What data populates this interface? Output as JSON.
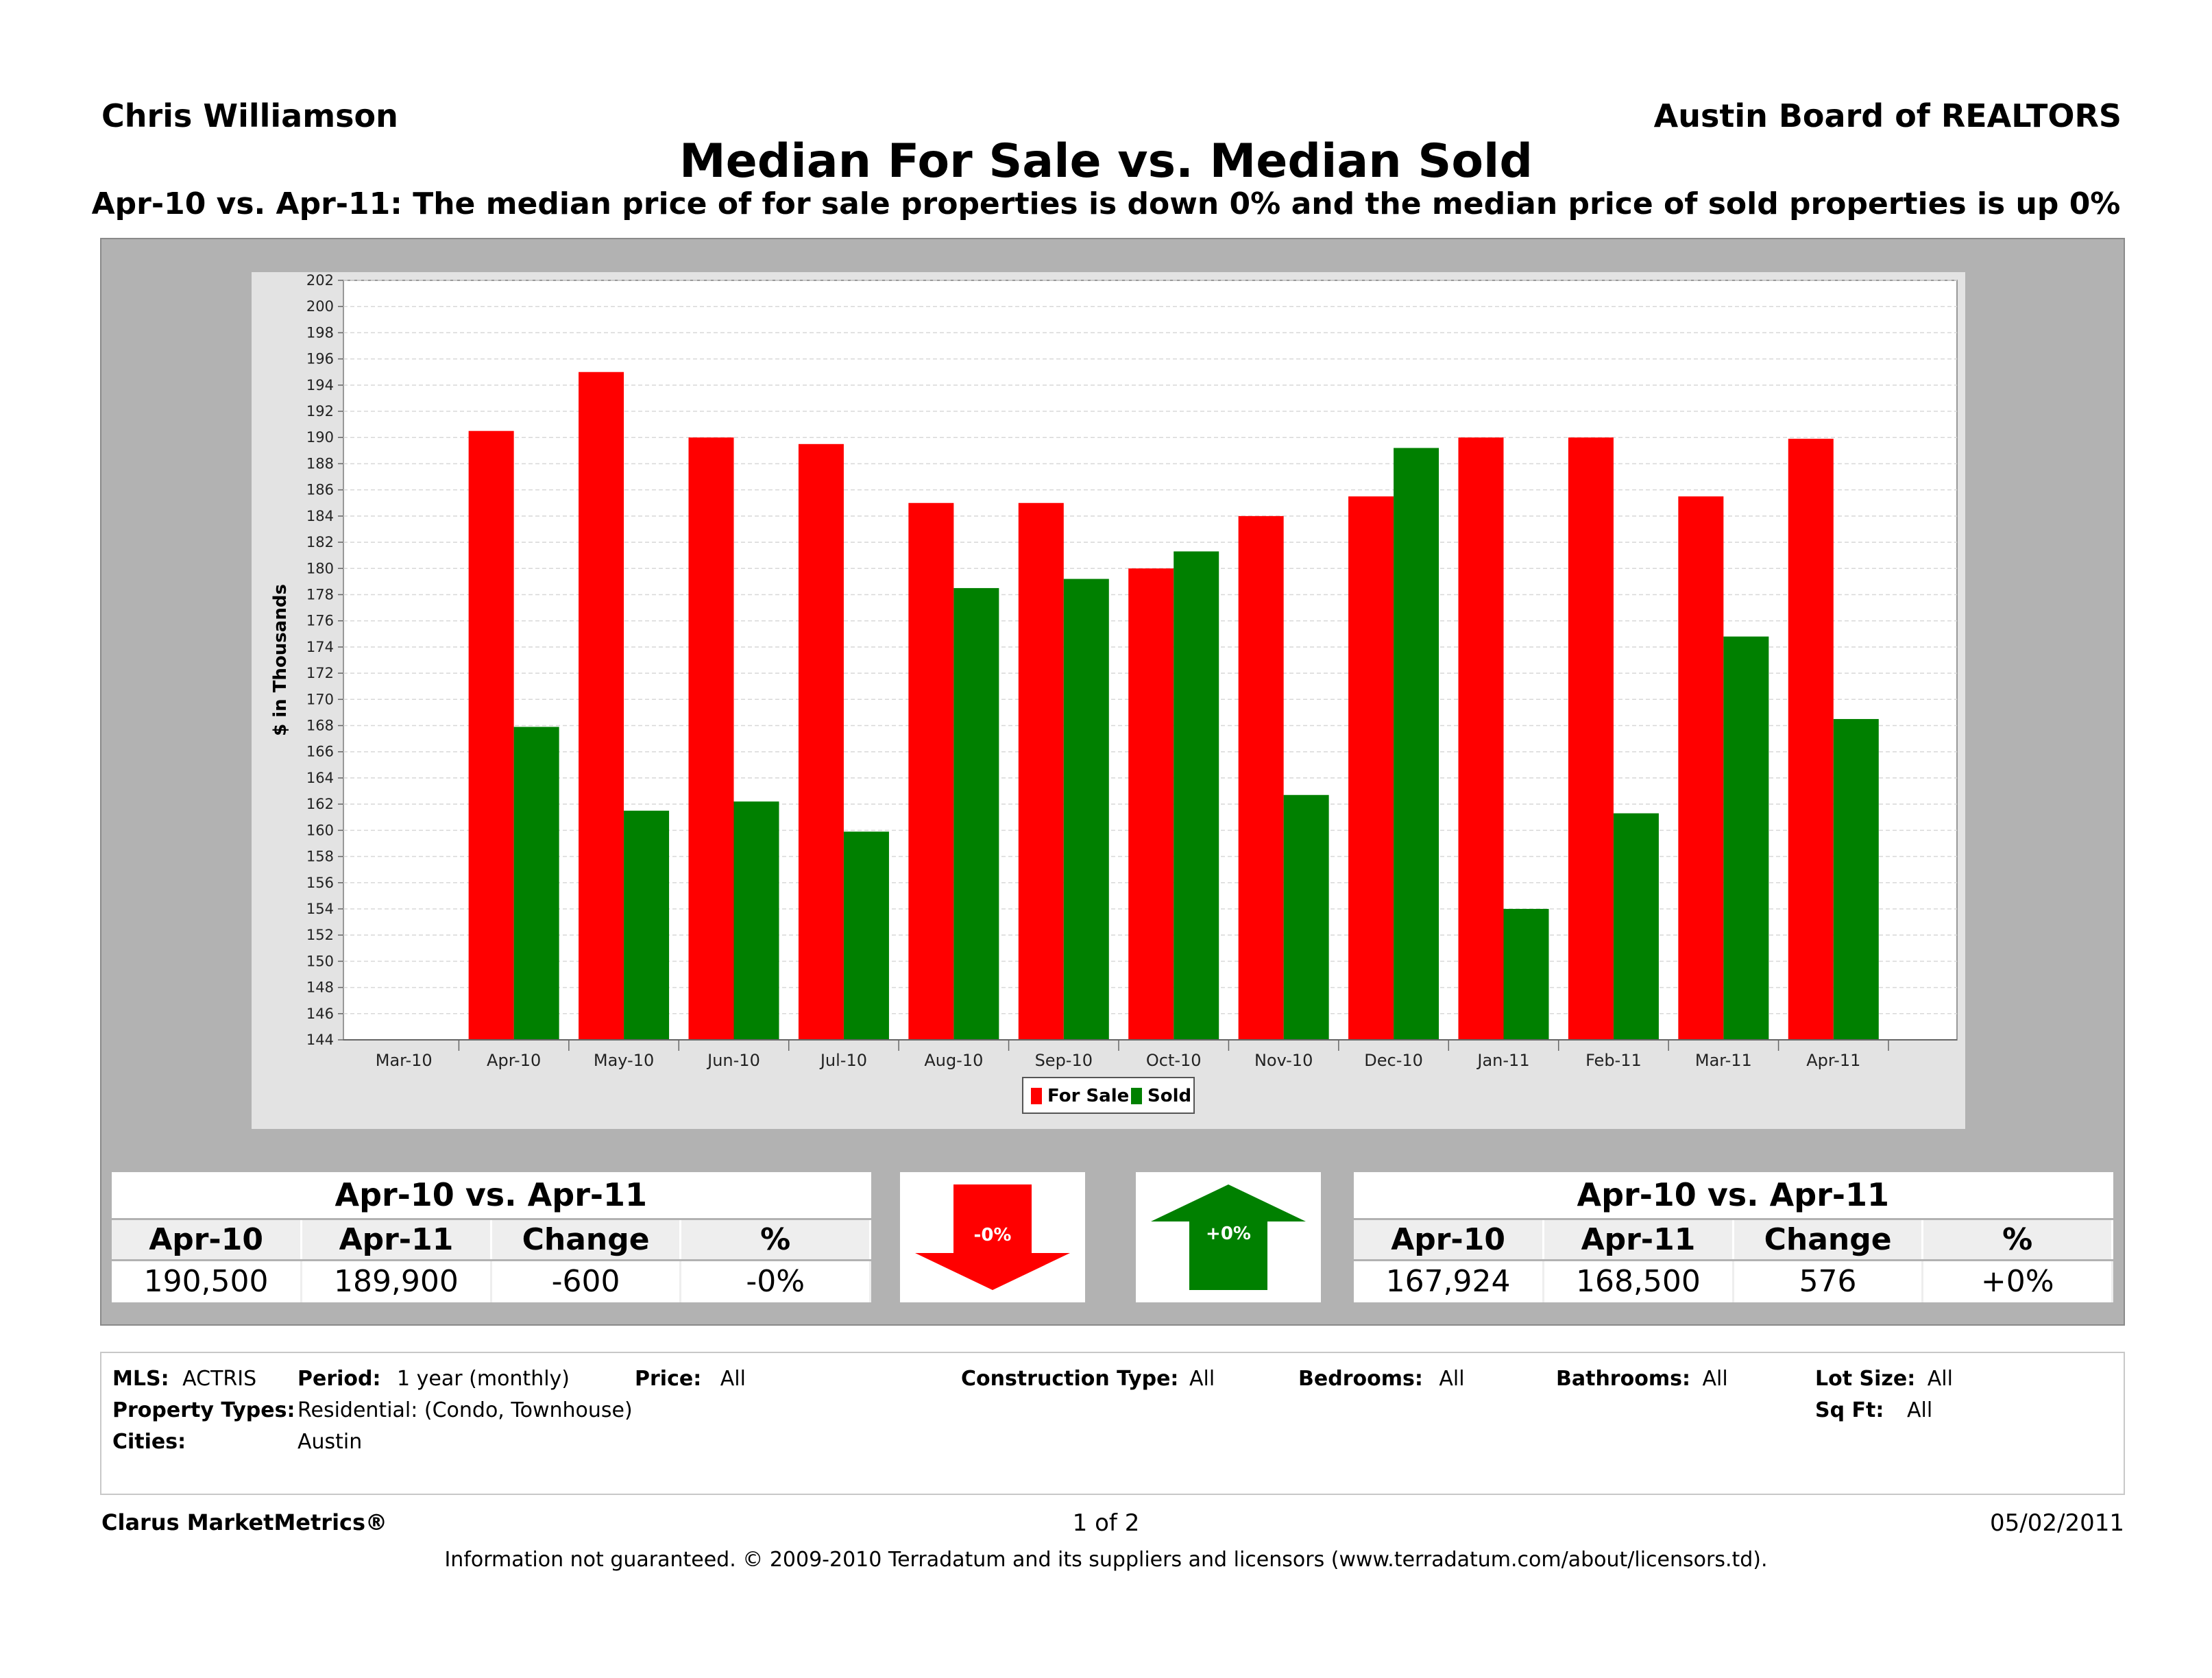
{
  "header": {
    "agent": "Chris Williamson",
    "board": "Austin Board of REALTORS",
    "title": "Median For Sale vs. Median Sold",
    "subtitle": "Apr-10 vs. Apr-11:  The median price of for sale properties is down 0% and the median price of sold properties is up 0%"
  },
  "chart_data": {
    "type": "bar",
    "title": "Median For Sale vs. Median Sold",
    "ylabel": "$ in Thousands",
    "xlabel": "",
    "ylim": [
      144,
      202
    ],
    "ytick_step": 2,
    "grid": true,
    "legend_position": "bottom-center",
    "categories": [
      "Mar-10",
      "Apr-10",
      "May-10",
      "Jun-10",
      "Jul-10",
      "Aug-10",
      "Sep-10",
      "Oct-10",
      "Nov-10",
      "Dec-10",
      "Jan-11",
      "Feb-11",
      "Mar-11",
      "Apr-11"
    ],
    "series": [
      {
        "name": "For Sale",
        "color": "#ff0000",
        "values": [
          null,
          190.5,
          195.0,
          190.0,
          189.5,
          185.0,
          185.0,
          180.0,
          184.0,
          185.5,
          190.0,
          190.0,
          185.5,
          189.9
        ]
      },
      {
        "name": "Sold",
        "color": "#008000",
        "values": [
          null,
          167.9,
          161.5,
          162.2,
          159.9,
          178.5,
          179.2,
          181.3,
          162.7,
          189.2,
          154.0,
          161.3,
          174.8,
          168.5
        ]
      }
    ]
  },
  "for_sale_summary": {
    "caption": "Apr-10 vs. Apr-11",
    "headers": [
      "Apr-10",
      "Apr-11",
      "Change",
      "%"
    ],
    "values": [
      "190,500",
      "189,900",
      "-600",
      "-0%"
    ],
    "arrow_label": "-0%",
    "arrow_color": "#ff0000"
  },
  "sold_summary": {
    "caption": "Apr-10 vs. Apr-11",
    "headers": [
      "Apr-10",
      "Apr-11",
      "Change",
      "%"
    ],
    "values": [
      "167,924",
      "168,500",
      "576",
      "+0%"
    ],
    "arrow_label": "+0%",
    "arrow_color": "#008000"
  },
  "criteria": {
    "mls_label": "MLS:",
    "mls_value": "ACTRIS",
    "period_label": "Period:",
    "period_value": "1 year (monthly)",
    "price_label": "Price:",
    "price_value": "All",
    "construction_label": "Construction Type:",
    "construction_value": "All",
    "bedrooms_label": "Bedrooms:",
    "bedrooms_value": "All",
    "bathrooms_label": "Bathrooms:",
    "bathrooms_value": "All",
    "lotsize_label": "Lot Size:",
    "lotsize_value": "All",
    "proptypes_label": "Property Types:",
    "proptypes_value": "Residential: (Condo, Townhouse)",
    "sqft_label": "Sq Ft:",
    "sqft_value": "All",
    "cities_label": "Cities:",
    "cities_value": "Austin"
  },
  "footer": {
    "brand": "Clarus MarketMetrics®",
    "page": "1 of 2",
    "date": "05/02/2011",
    "disclaimer": "Information not guaranteed.  © 2009-2010 Terradatum and its suppliers and licensors (www.terradatum.com/about/licensors.td)."
  }
}
